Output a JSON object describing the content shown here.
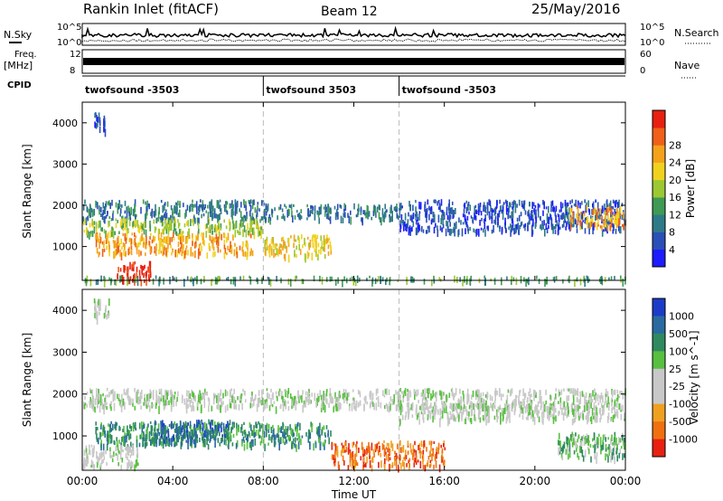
{
  "header": {
    "title": "Rankin Inlet (fitACF)",
    "beam": "Beam 12",
    "date": "25/May/2016"
  },
  "side_labels": {
    "nsky": "N.Sky",
    "freq": "Freq.",
    "mhz": "[MHz]",
    "cpid": "CPID",
    "nsearch": "N.Search",
    "nave": "Nave",
    "nsky_ticks": [
      "10^5",
      "10^0"
    ],
    "nsearch_ticks": [
      "10^5",
      "10^0"
    ],
    "freq_ticks": [
      "12",
      "8"
    ],
    "nave_ticks": [
      "60",
      "0"
    ]
  },
  "cpid_segments": [
    {
      "label": "twofsound -3503",
      "start_h": 0
    },
    {
      "label": "twofsound 3503",
      "start_h": 8
    },
    {
      "label": "twofsound -3503",
      "start_h": 14
    }
  ],
  "chart_data": [
    {
      "type": "heatmap",
      "name": "power",
      "ylabel": "Slant Range [km]",
      "x_range_hours": [
        0,
        24
      ],
      "ylim": [
        180,
        4500
      ],
      "yticks": [
        1000,
        2000,
        3000,
        4000
      ],
      "colorbar": {
        "label": "Power [dB]",
        "ticks": [
          "4",
          "8",
          "12",
          "16",
          "20",
          "24",
          "28"
        ],
        "colors": [
          "#1c1cff",
          "#2b4fb8",
          "#2f7a88",
          "#3f9a55",
          "#9cc832",
          "#f0d21e",
          "#f4a21c",
          "#f06018",
          "#e82010"
        ]
      },
      "regions": [
        {
          "t0": 0.0,
          "t1": 8.0,
          "r0": 1700,
          "r1": 2150,
          "level": 2
        },
        {
          "t0": 0.0,
          "t1": 8.0,
          "r0": 1350,
          "r1": 1700,
          "level": 4
        },
        {
          "t0": 0.5,
          "t1": 7.5,
          "r0": 850,
          "r1": 1350,
          "level": 6
        },
        {
          "t0": 1.5,
          "t1": 3.0,
          "r0": 200,
          "r1": 650,
          "level": 8
        },
        {
          "t0": 8.0,
          "t1": 14.0,
          "r0": 1700,
          "r1": 2050,
          "level": 2
        },
        {
          "t0": 8.0,
          "t1": 11.0,
          "r0": 800,
          "r1": 1300,
          "level": 5
        },
        {
          "t0": 14.0,
          "t1": 24.0,
          "r0": 1400,
          "r1": 2150,
          "level": 1
        },
        {
          "t0": 21.5,
          "t1": 24.0,
          "r0": 1500,
          "r1": 2000,
          "level": 6
        },
        {
          "t0": 0.5,
          "t1": 1.0,
          "r0": 3800,
          "r1": 4300,
          "level": 1
        },
        {
          "t0": 0.0,
          "t1": 24.0,
          "r0": 200,
          "r1": 300,
          "level": 3
        }
      ]
    },
    {
      "type": "heatmap",
      "name": "velocity",
      "ylabel": "Slant Range [km]",
      "xlabel": "Time UT",
      "x_range_hours": [
        0,
        24
      ],
      "xticks": [
        "00:00",
        "04:00",
        "08:00",
        "12:00",
        "16:00",
        "20:00",
        "00:00"
      ],
      "ylim": [
        180,
        4500
      ],
      "yticks": [
        1000,
        2000,
        3000,
        4000
      ],
      "colorbar": {
        "label": "Velocity [m s^-1]",
        "ticks": [
          "1000",
          "500",
          "100",
          "25",
          "-25",
          "-100",
          "-500",
          "-1000"
        ],
        "colors": [
          "#1c3cc8",
          "#2a6aa0",
          "#2f8a60",
          "#58c040",
          "#c8c8c8",
          "#c8c8c8",
          "#f0a020",
          "#f07010",
          "#e82010"
        ]
      },
      "regions": [
        {
          "t0": 0.0,
          "t1": 24.0,
          "r0": 1700,
          "r1": 2150,
          "level": 4
        },
        {
          "t0": 0.5,
          "t1": 11.0,
          "r0": 800,
          "r1": 1350,
          "level": 2
        },
        {
          "t0": 3.0,
          "t1": 6.5,
          "r0": 900,
          "r1": 1400,
          "level": 1
        },
        {
          "t0": 11.0,
          "t1": 16.0,
          "r0": 300,
          "r1": 900,
          "level": 7
        },
        {
          "t0": 14.0,
          "t1": 24.0,
          "r0": 1400,
          "r1": 1800,
          "level": 4
        },
        {
          "t0": 21.0,
          "t1": 24.0,
          "r0": 500,
          "r1": 1100,
          "level": 3
        },
        {
          "t0": 0.0,
          "t1": 2.5,
          "r0": 300,
          "r1": 800,
          "level": 4
        },
        {
          "t0": 0.5,
          "t1": 1.2,
          "r0": 3800,
          "r1": 4300,
          "level": 4
        }
      ]
    }
  ]
}
